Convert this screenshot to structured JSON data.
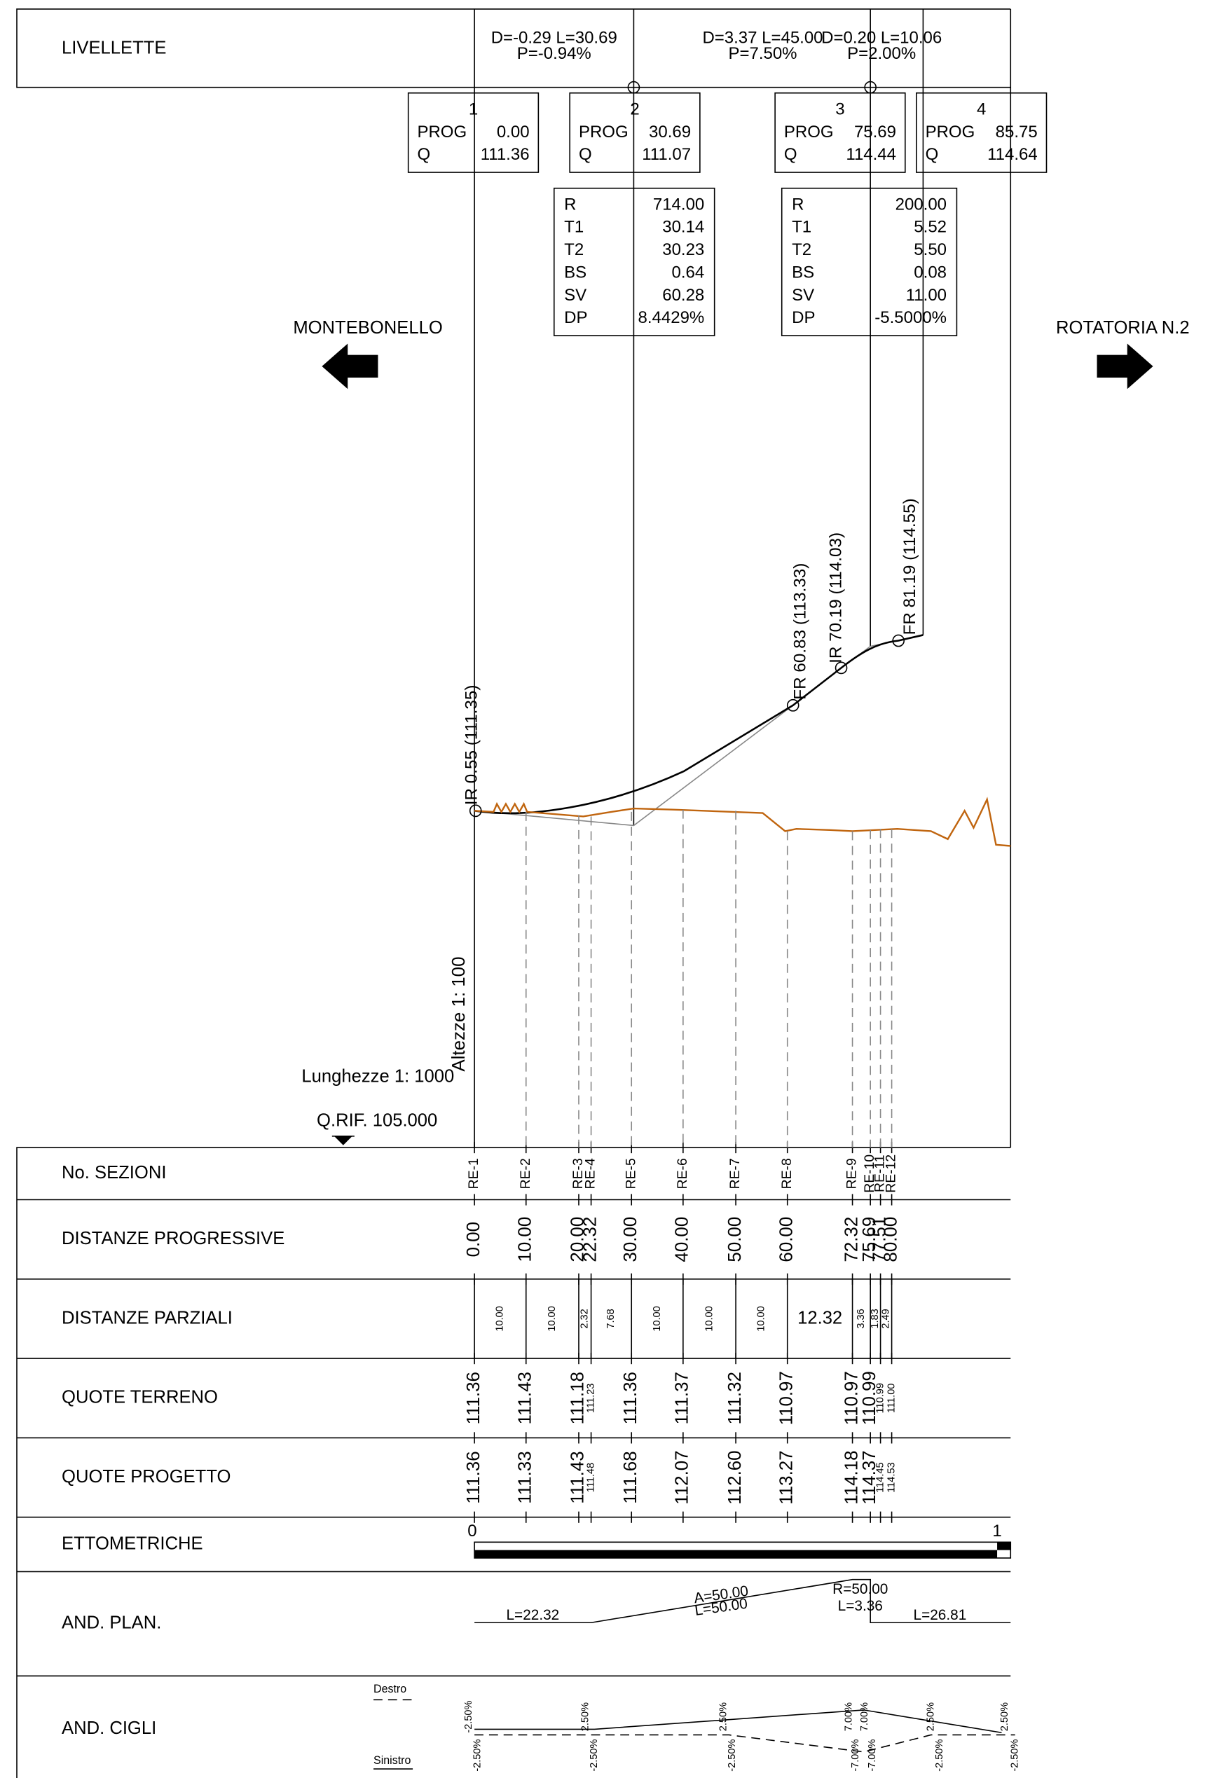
{
  "livellette": {
    "label": "LIVELLETTE",
    "segments": [
      {
        "d": "D=-0.29 L=30.69",
        "p": "P=-0.94%"
      },
      {
        "d": "D=3.37 L=45.00",
        "p": "P=7.50%"
      },
      {
        "d": "D=0.20 L=10.06",
        "p": "P=2.00%"
      }
    ]
  },
  "vertices": [
    {
      "id": "1",
      "prog_label": "PROG",
      "prog": "0.00",
      "q_label": "Q",
      "q": "111.36"
    },
    {
      "id": "2",
      "prog_label": "PROG",
      "prog": "30.69",
      "q_label": "Q",
      "q": "111.07"
    },
    {
      "id": "3",
      "prog_label": "PROG",
      "prog": "75.69",
      "q_label": "Q",
      "q": "114.44"
    },
    {
      "id": "4",
      "prog_label": "PROG",
      "prog": "85.75",
      "q_label": "Q",
      "q": "114.64"
    }
  ],
  "curves": [
    {
      "rows": [
        [
          "R",
          "714.00"
        ],
        [
          "T1",
          "30.14"
        ],
        [
          "T2",
          "30.23"
        ],
        [
          "BS",
          "0.64"
        ],
        [
          "SV",
          "60.28"
        ],
        [
          "DP",
          "8.4429%"
        ]
      ]
    },
    {
      "rows": [
        [
          "R",
          "200.00"
        ],
        [
          "T1",
          "5.52"
        ],
        [
          "T2",
          "5.50"
        ],
        [
          "BS",
          "0.08"
        ],
        [
          "SV",
          "11.00"
        ],
        [
          "DP",
          "-5.5000%"
        ]
      ]
    }
  ],
  "directions": {
    "left": "MONTEBONELLO",
    "right": "ROTATORIA N.2"
  },
  "profile_labels": [
    "IR  0.55  (111.35)",
    "FR  60.83  (113.33)",
    "IR  70.19  (114.03)",
    "FR  81.19  (114.55)"
  ],
  "scales": {
    "vertical": "Altezze 1: 100",
    "horizontal": "Lunghezze 1: 1000",
    "reference": "Q.RIF. 105.000"
  },
  "table": {
    "sections": {
      "label": "No. SEZIONI",
      "values": [
        "RE-1",
        "RE-2",
        "RE-3",
        "RE-4",
        "RE-5",
        "RE-6",
        "RE-7",
        "RE-8",
        "RE-9",
        "RE-10",
        "RE-11",
        "RE-12"
      ]
    },
    "progressive": {
      "label": "DISTANZE PROGRESSIVE",
      "values": [
        "0.00",
        "10.00",
        "20.00",
        "22.32",
        "30.00",
        "40.00",
        "50.00",
        "60.00",
        "72.32",
        "75.69",
        "77.51",
        "80.00"
      ]
    },
    "partial": {
      "label": "DISTANZE PARZIALI",
      "values": [
        "10.00",
        "10.00",
        "2.32",
        "7.68",
        "10.00",
        "10.00",
        "10.00",
        "12.32",
        "3.36",
        "1.83",
        "2.49"
      ]
    },
    "ground": {
      "label": "QUOTE TERRENO",
      "values": [
        "111.36",
        "111.43",
        "111.18",
        "111.23",
        "111.36",
        "111.37",
        "111.32",
        "110.97",
        "110.97",
        "110.99",
        "110.99",
        "111.00"
      ]
    },
    "design": {
      "label": "QUOTE PROGETTO",
      "values": [
        "111.36",
        "111.33",
        "111.43",
        "111.48",
        "111.68",
        "112.07",
        "112.60",
        "113.27",
        "114.18",
        "114.37",
        "114.45",
        "114.53"
      ]
    }
  },
  "ettometriche": {
    "label": "ETTOMETRICHE",
    "marks": [
      "0",
      "1"
    ]
  },
  "and_plan": {
    "label": "AND. PLAN.",
    "items": [
      "L=22.32",
      "A=50.00",
      "L=50.00",
      "R=50.00",
      "L=3.36",
      "L=26.81"
    ]
  },
  "and_cigli": {
    "label": "AND. CIGLI",
    "legend": [
      "Destro",
      "Sinistro"
    ],
    "destro": [
      "-2.50%",
      "2.50%",
      "2.50%",
      "7.00%",
      "7.00%",
      "2.50%",
      "2.50%"
    ],
    "sinistro": [
      "-2.50%",
      "-2.50%",
      "-2.50%",
      "-7.00%",
      "-7.00%",
      "-2.50%",
      "-2.50%"
    ]
  }
}
